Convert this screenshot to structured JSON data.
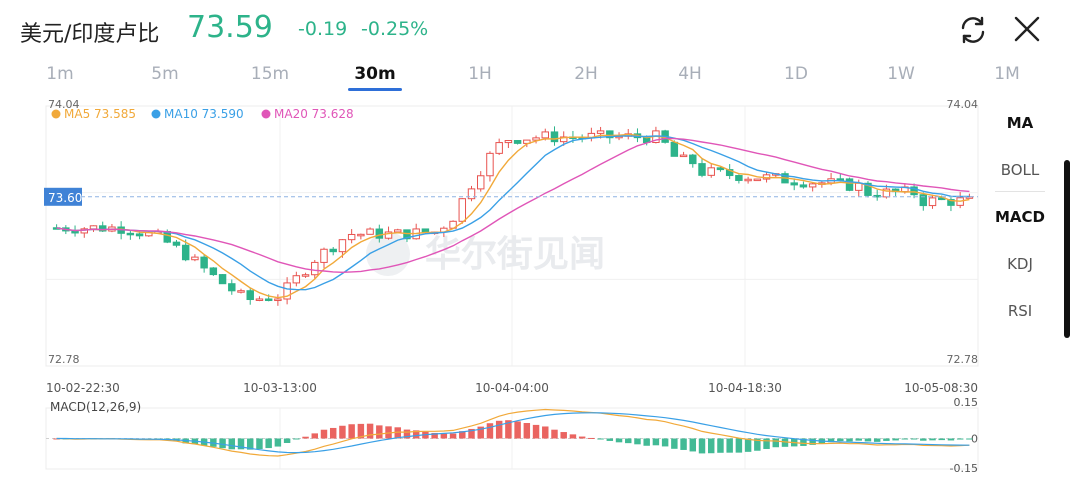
{
  "header": {
    "pair": "美元/印度卢比",
    "price": "73.59",
    "change": "-0.19",
    "change_pct": "-0.25%",
    "up_color": "#2db38a",
    "refresh_icon": "refresh-icon",
    "close_icon": "close-icon"
  },
  "tabs": [
    "1m",
    "5m",
    "15m",
    "30m",
    "1H",
    "2H",
    "4H",
    "1D",
    "1W",
    "1M"
  ],
  "active_tab": "30m",
  "side_menu": [
    "MA",
    "BOLL",
    "MACD",
    "KDJ",
    "RSI"
  ],
  "active_main_indicator": "MA",
  "active_sub_indicator": "MACD",
  "chart_data": {
    "type": "candlestick",
    "watermark": "华尔街见闻",
    "colors": {
      "up": "#e8534f",
      "down": "#2db38a",
      "ma5": "#f1a93a",
      "ma10": "#3aa0e6",
      "ma20": "#e056b8",
      "last": "#3f82d6"
    },
    "price_axis": {
      "max_label": "74.04",
      "min_label": "72.78",
      "max": 74.04,
      "min": 72.78
    },
    "last_price": {
      "label": "73.60",
      "value": 73.6
    },
    "x_labels": [
      "10-02-22:30",
      "10-03-13:00",
      "10-04-04:00",
      "10-04-18:30",
      "10-05-08:30"
    ],
    "legend": [
      {
        "name": "MA5",
        "value": "73.585"
      },
      {
        "name": "MA10",
        "value": "73.590"
      },
      {
        "name": "MA20",
        "value": "73.628"
      }
    ],
    "macd": {
      "label": "MACD(12,26,9)",
      "y_labels": [
        "0.15",
        "0",
        "-0.15"
      ],
      "max": 0.15,
      "min": -0.15
    }
  }
}
